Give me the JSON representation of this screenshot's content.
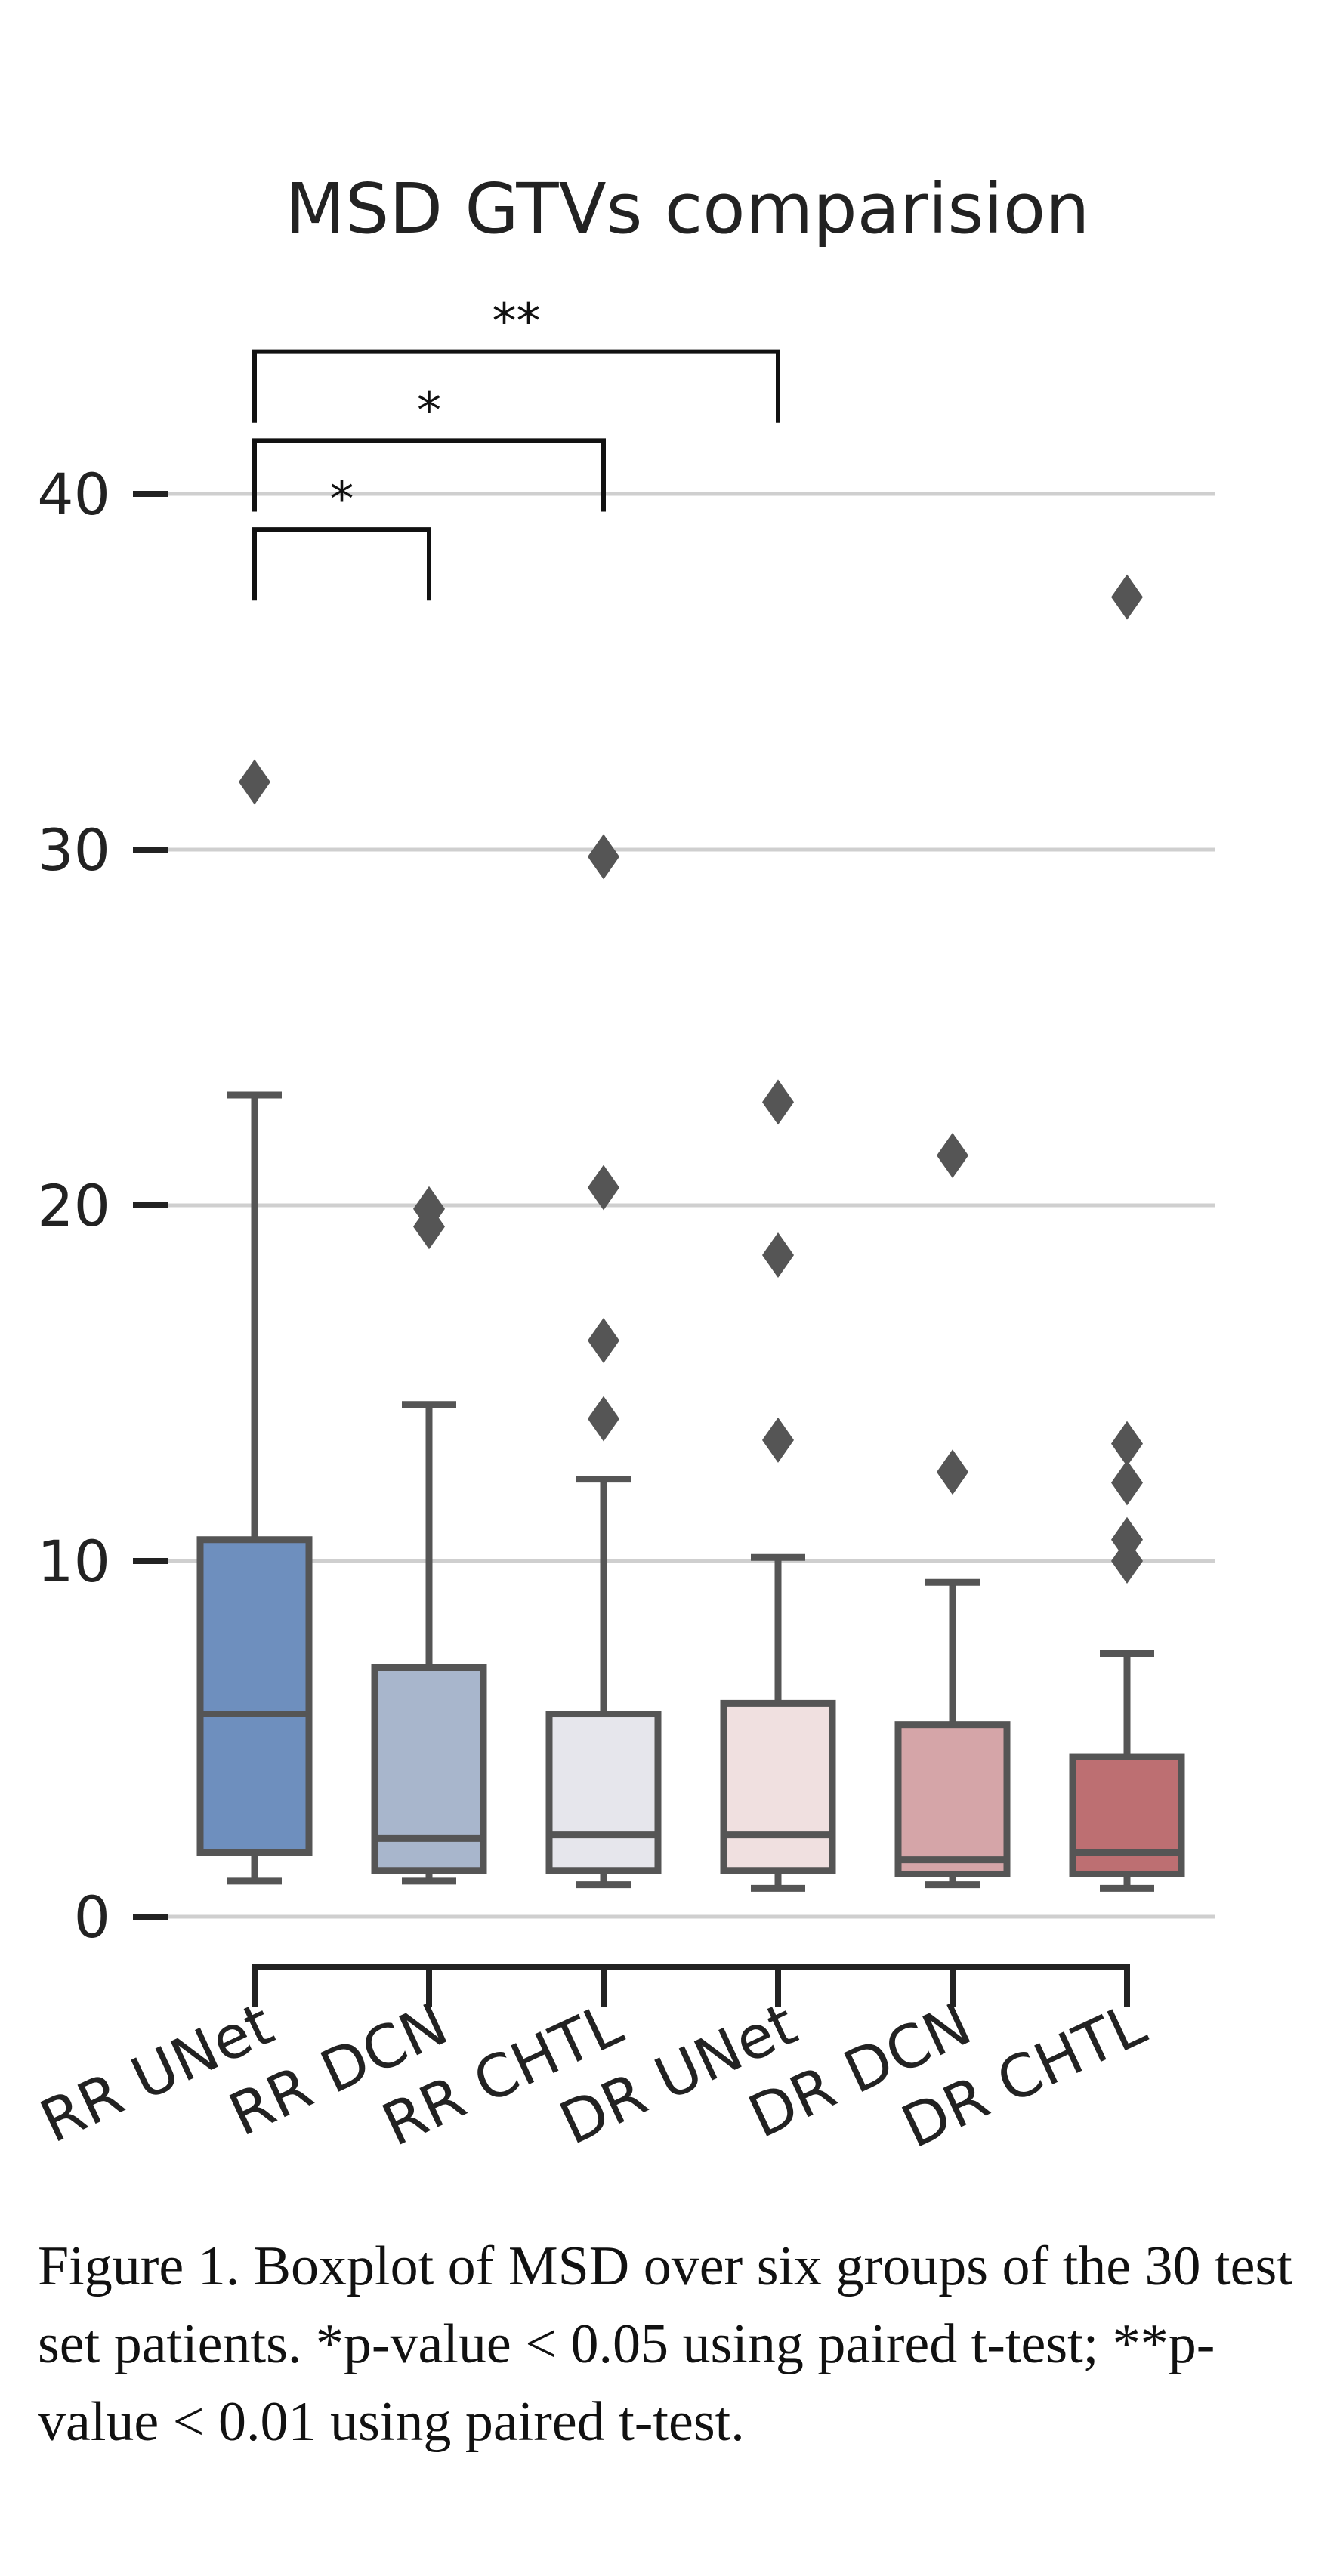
{
  "chart_data": {
    "type": "boxplot",
    "title": "MSD GTVs comparision",
    "ylim": [
      -2,
      46
    ],
    "yticks": [
      0,
      10,
      20,
      30,
      40
    ],
    "grid": true,
    "categories": [
      "RR UNet",
      "RR DCN",
      "RR CHTL",
      "DR UNet",
      "DR DCN",
      "DR CHTL"
    ],
    "boxes": [
      {
        "category": "RR UNet",
        "color": "#6e8fbe",
        "whisker_low": 1.0,
        "q1": 1.8,
        "median": 5.7,
        "q3": 10.6,
        "whisker_high": 23.1,
        "outliers": [
          31.9
        ]
      },
      {
        "category": "RR DCN",
        "color": "#a8b6cc",
        "whisker_low": 1.0,
        "q1": 1.3,
        "median": 2.2,
        "q3": 7.0,
        "whisker_high": 14.4,
        "outliers": [
          19.4,
          19.9
        ]
      },
      {
        "category": "RR CHTL",
        "color": "#e6e6ec",
        "whisker_low": 0.9,
        "q1": 1.3,
        "median": 2.3,
        "q3": 5.7,
        "whisker_high": 12.3,
        "outliers": [
          14.0,
          16.2,
          20.5,
          29.8
        ]
      },
      {
        "category": "DR UNet",
        "color": "#f0e0e0",
        "whisker_low": 0.8,
        "q1": 1.3,
        "median": 2.3,
        "q3": 6.0,
        "whisker_high": 10.1,
        "outliers": [
          13.4,
          18.6,
          22.9
        ]
      },
      {
        "category": "DR DCN",
        "color": "#d5a5a8",
        "whisker_low": 0.9,
        "q1": 1.2,
        "median": 1.6,
        "q3": 5.4,
        "whisker_high": 9.4,
        "outliers": [
          12.5,
          21.4
        ]
      },
      {
        "category": "DR CHTL",
        "color": "#bd6f72",
        "whisker_low": 0.8,
        "q1": 1.2,
        "median": 1.8,
        "q3": 4.5,
        "whisker_high": 7.4,
        "outliers": [
          10.0,
          10.6,
          12.2,
          13.3,
          37.1
        ]
      }
    ],
    "significance": [
      {
        "from": "RR UNet",
        "to": "RR DCN",
        "label": "*",
        "y_bottom": 37.0,
        "y_top": 39.0
      },
      {
        "from": "RR UNet",
        "to": "RR CHTL",
        "label": "*",
        "y_bottom": 39.5,
        "y_top": 41.5
      },
      {
        "from": "RR UNet",
        "to": "DR UNet",
        "label": "**",
        "y_bottom": 42.0,
        "y_top": 44.0
      }
    ]
  },
  "caption": "Figure 1. Boxplot of MSD over six groups of the 30 test set patients. *p-value < 0.05 using paired t-test; **p-value < 0.01 using paired t-test."
}
